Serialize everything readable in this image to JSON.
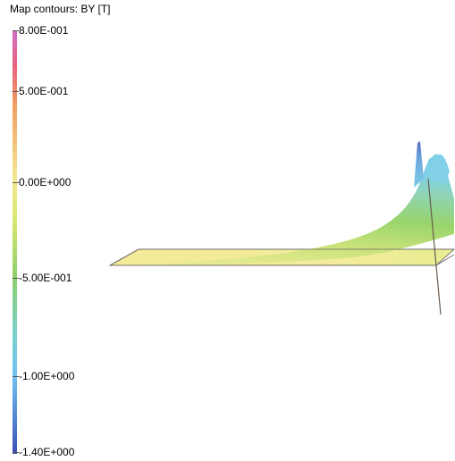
{
  "legend": {
    "title": "Map contours: BY [T]",
    "ticks": [
      "8.00E-001",
      "5.00E-001",
      "0.00E+000",
      "-5.00E-001",
      "-1.00E+000",
      "-1.40E+000"
    ],
    "colors": [
      "#d070c8",
      "#e86080",
      "#f0a060",
      "#f4e890",
      "#8ed06a",
      "#78d0d0",
      "#70c0f0",
      "#3a4fb8"
    ]
  },
  "viewport": {
    "plane_color": "#f4eb9c",
    "surface_color_low": "#f4eb9c",
    "surface_color_mid": "#9ad36e",
    "surface_color_high": "#7ed2e8",
    "surface_color_peak": "#6a80c8",
    "edge_color": "#555555"
  }
}
